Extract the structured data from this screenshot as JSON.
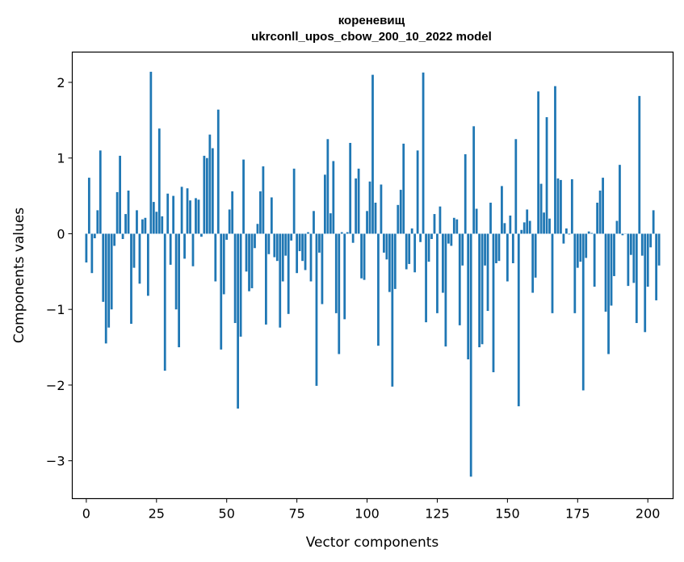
{
  "chart_data": {
    "type": "bar",
    "title_line1": "кореневищ",
    "title_line2": "ukrconll_upos_cbow_200_10_2022 model",
    "xlabel": "Vector components",
    "ylabel": "Components values",
    "xlim": [
      -5,
      209
    ],
    "ylim": [
      -3.5,
      2.4
    ],
    "xticks": [
      0,
      25,
      50,
      75,
      100,
      125,
      150,
      175,
      200
    ],
    "xtick_labels": [
      "0",
      "25",
      "50",
      "75",
      "100",
      "125",
      "150",
      "175",
      "200"
    ],
    "yticks": [
      -3,
      -2,
      -1,
      0,
      1,
      2
    ],
    "ytick_labels": [
      "−3",
      "−2",
      "−1",
      "0",
      "1",
      "2"
    ],
    "bar_color": "#1f77b4",
    "values": [
      -0.38,
      0.74,
      -0.52,
      -0.06,
      0.31,
      1.1,
      -0.9,
      -1.45,
      -1.24,
      -1.0,
      -0.16,
      0.55,
      1.03,
      -0.07,
      0.26,
      0.57,
      -1.19,
      -0.45,
      0.31,
      -0.66,
      0.19,
      0.21,
      -0.82,
      2.14,
      0.42,
      0.29,
      1.39,
      0.23,
      -1.81,
      0.53,
      -0.41,
      0.5,
      -1.0,
      -1.5,
      0.62,
      -0.33,
      0.6,
      0.44,
      -0.43,
      0.47,
      0.45,
      -0.04,
      1.03,
      1.0,
      1.31,
      1.13,
      -0.63,
      1.64,
      -1.53,
      -0.8,
      -0.08,
      0.32,
      0.56,
      -1.18,
      -2.31,
      -1.36,
      0.98,
      -0.5,
      -0.76,
      -0.72,
      -0.19,
      0.13,
      0.56,
      0.89,
      -1.2,
      -0.27,
      0.48,
      -0.31,
      -0.36,
      -1.24,
      -0.63,
      -0.29,
      -1.06,
      -0.09,
      0.86,
      -0.52,
      -0.23,
      -0.36,
      -0.48,
      0.02,
      -0.63,
      0.3,
      -2.01,
      -0.25,
      -0.93,
      0.78,
      1.25,
      0.27,
      0.96,
      -1.05,
      -1.59,
      0.02,
      -1.13,
      0.02,
      1.2,
      -0.12,
      0.73,
      0.86,
      -0.59,
      -0.61,
      0.3,
      0.69,
      2.1,
      0.41,
      -1.48,
      0.65,
      -0.25,
      -0.34,
      -0.77,
      -2.02,
      -0.73,
      0.38,
      0.58,
      1.19,
      -0.47,
      -0.4,
      0.07,
      -0.51,
      1.1,
      -0.11,
      2.13,
      -1.17,
      -0.37,
      -0.07,
      0.26,
      -1.05,
      0.36,
      -0.78,
      -1.49,
      -0.13,
      -0.16,
      0.21,
      0.19,
      -1.21,
      -0.42,
      1.05,
      -1.66,
      -3.21,
      1.42,
      0.33,
      -1.5,
      -1.46,
      -0.42,
      -1.02,
      0.41,
      -1.83,
      -0.39,
      -0.36,
      0.63,
      0.14,
      -0.63,
      0.24,
      -0.39,
      1.25,
      -2.28,
      0.05,
      0.15,
      0.32,
      0.17,
      -0.78,
      -0.58,
      1.88,
      0.66,
      0.28,
      1.54,
      0.2,
      -1.05,
      1.95,
      0.73,
      0.71,
      -0.13,
      0.07,
      -0.01,
      0.72,
      -1.05,
      -0.45,
      -0.37,
      -2.07,
      -0.32,
      0.03,
      0.01,
      -0.7,
      0.41,
      0.57,
      0.74,
      -1.03,
      -1.59,
      -0.95,
      -0.56,
      0.17,
      0.91,
      -0.02,
      0.0,
      -0.69,
      -0.28,
      -0.65,
      -1.18,
      1.82,
      -0.29,
      -1.3,
      -0.7,
      -0.18,
      0.31,
      -0.88,
      -0.42
    ]
  }
}
